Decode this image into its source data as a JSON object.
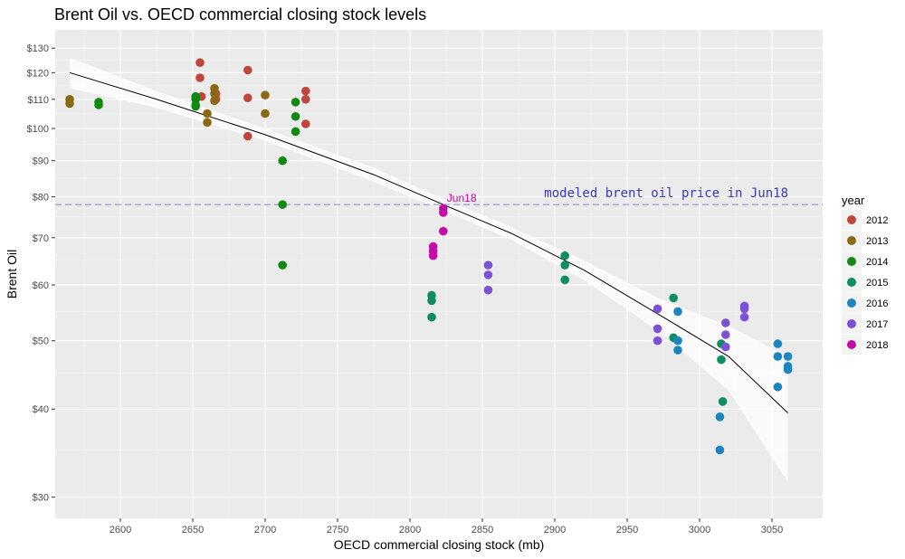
{
  "chart_data": {
    "type": "scatter",
    "title": "Brent Oil vs. OECD commercial closing stock levels",
    "xlabel": "OECD commercial closing stock (mb)",
    "ylabel": "Brent Oil",
    "xlim": [
      2555,
      3085
    ],
    "ylim": [
      28,
      138
    ],
    "y_scale": "log",
    "x_ticks": [
      2600,
      2650,
      2700,
      2750,
      2800,
      2850,
      2900,
      2950,
      3000,
      3050
    ],
    "y_ticks": [
      30,
      40,
      50,
      60,
      70,
      80,
      90,
      100,
      110,
      120,
      130
    ],
    "y_tick_labels": [
      "$30",
      "$40",
      "$50",
      "$60",
      "$70",
      "$80",
      "$90",
      "$100",
      "$110",
      "$120",
      "$130"
    ],
    "legend_title": "year",
    "legend_position": "right",
    "series": [
      {
        "name": "2012",
        "color": "#c0463c",
        "points": [
          [
            2655,
            124
          ],
          [
            2655,
            118
          ],
          [
            2656,
            111
          ],
          [
            2666,
            110
          ],
          [
            2666,
            112
          ],
          [
            2688,
            121
          ],
          [
            2688,
            110.5
          ],
          [
            2688,
            97.5
          ],
          [
            2728,
            113
          ],
          [
            2728,
            110
          ],
          [
            2728,
            101.5
          ]
        ]
      },
      {
        "name": "2013",
        "color": "#8b6914",
        "points": [
          [
            2565,
            110
          ],
          [
            2565,
            108.5
          ],
          [
            2660,
            105
          ],
          [
            2660,
            102
          ],
          [
            2665,
            114
          ],
          [
            2665,
            112
          ],
          [
            2665,
            109.5
          ],
          [
            2700,
            111.5
          ],
          [
            2700,
            105
          ]
        ]
      },
      {
        "name": "2014",
        "color": "#118811",
        "points": [
          [
            2585,
            109
          ],
          [
            2585,
            108
          ],
          [
            2652,
            111
          ],
          [
            2652,
            110
          ],
          [
            2652,
            108
          ],
          [
            2652,
            107.5
          ],
          [
            2712,
            90
          ],
          [
            2712,
            78
          ],
          [
            2712,
            64
          ],
          [
            2721,
            109
          ],
          [
            2721,
            104
          ],
          [
            2721,
            99
          ]
        ]
      },
      {
        "name": "2015",
        "color": "#0f8c60",
        "points": [
          [
            2815,
            58
          ],
          [
            2815,
            57
          ],
          [
            2815,
            54
          ],
          [
            2907,
            66
          ],
          [
            2907,
            64
          ],
          [
            2907,
            61
          ],
          [
            2982,
            57.5
          ],
          [
            2982,
            50.5
          ],
          [
            3015,
            49.5
          ],
          [
            3015,
            47
          ],
          [
            3016,
            41
          ]
        ]
      },
      {
        "name": "2016",
        "color": "#1a85bf",
        "points": [
          [
            2985,
            55
          ],
          [
            2985,
            50
          ],
          [
            2985,
            48.5
          ],
          [
            3014,
            39
          ],
          [
            3014,
            35
          ],
          [
            3054,
            49.5
          ],
          [
            3054,
            47.5
          ],
          [
            3054,
            43
          ],
          [
            3061,
            47.5
          ],
          [
            3061,
            46
          ],
          [
            3061,
            45.5
          ]
        ]
      },
      {
        "name": "2017",
        "color": "#7b52d6",
        "points": [
          [
            2854,
            64
          ],
          [
            2854,
            62
          ],
          [
            2854,
            59
          ],
          [
            2971,
            55.5
          ],
          [
            2971,
            52
          ],
          [
            2971,
            50
          ],
          [
            3018,
            53
          ],
          [
            3018,
            51
          ],
          [
            3018,
            49
          ],
          [
            3031,
            56
          ],
          [
            3031,
            55.5
          ],
          [
            3031,
            54
          ]
        ]
      },
      {
        "name": "2018",
        "color": "#c40ca6",
        "points": [
          [
            2816,
            68
          ],
          [
            2816,
            67
          ],
          [
            2816,
            66
          ],
          [
            2823,
            77
          ],
          [
            2823,
            76
          ],
          [
            2823,
            71.5
          ]
        ]
      }
    ],
    "fit_line": {
      "x": [
        2565,
        2625,
        2700,
        2775,
        2823,
        2870,
        2920,
        2975,
        3020,
        3061
      ],
      "y": [
        120,
        110,
        98,
        86,
        78,
        71,
        63,
        54,
        47.5,
        39.5
      ]
    },
    "fit_band_halfwidth": [
      6,
      3,
      2,
      2,
      1.5,
      1.5,
      2,
      3,
      5,
      8
    ],
    "reference_line": {
      "y": 78,
      "label": "modeled brent oil price in Jun18"
    },
    "point_annotation": {
      "x": 2823,
      "y": 78,
      "label": "Jun18"
    }
  }
}
